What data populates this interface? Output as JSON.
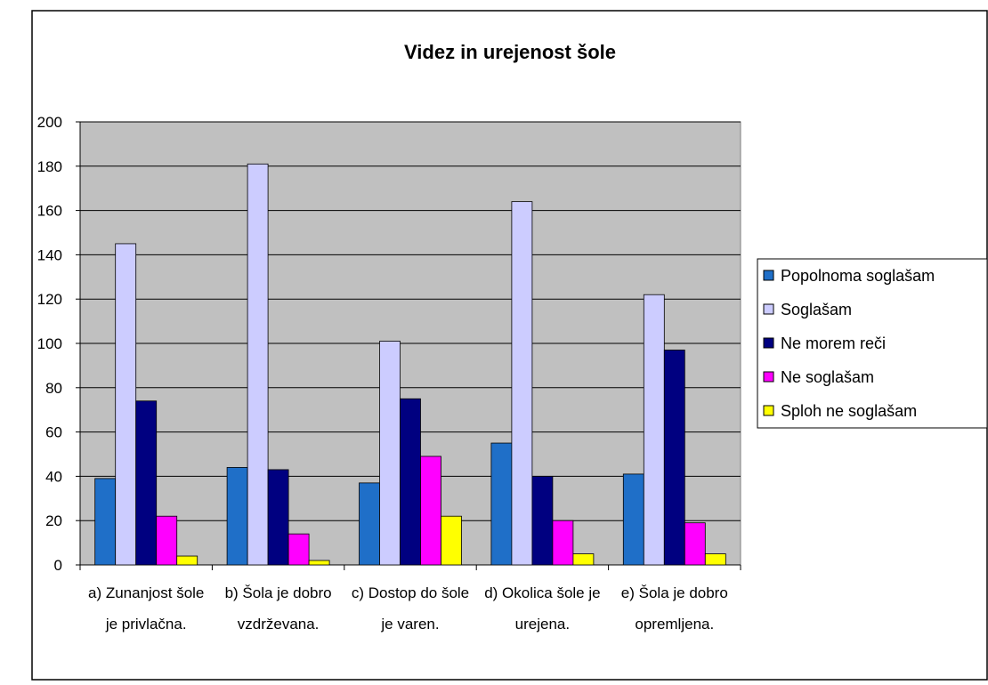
{
  "chart_data": {
    "type": "bar",
    "title": "Videz in urejenost šole",
    "categories": [
      "a) Zunanjost šole je privlačna.",
      "b) Šola je dobro vzdrževana.",
      "c) Dostop do šole je varen.",
      "d) Okolica šole je urejena.",
      "e) Šola je dobro opremljena."
    ],
    "series": [
      {
        "name": "Popolnoma soglašam",
        "color": "#1f6fc8",
        "values": [
          39,
          44,
          37,
          55,
          41
        ]
      },
      {
        "name": "Soglašam",
        "color": "#ccccff",
        "values": [
          145,
          181,
          101,
          164,
          122
        ]
      },
      {
        "name": "Ne morem reči",
        "color": "#000080",
        "values": [
          74,
          43,
          75,
          40,
          97
        ]
      },
      {
        "name": "Ne soglašam",
        "color": "#ff00ff",
        "values": [
          22,
          14,
          49,
          20,
          19
        ]
      },
      {
        "name": "Sploh ne soglašam",
        "color": "#ffff00",
        "values": [
          4,
          2,
          22,
          5,
          5
        ]
      }
    ],
    "ylim": [
      0,
      200
    ],
    "yticks": [
      0,
      20,
      40,
      60,
      80,
      100,
      120,
      140,
      160,
      180,
      200
    ],
    "grid": true,
    "legend": "right"
  }
}
